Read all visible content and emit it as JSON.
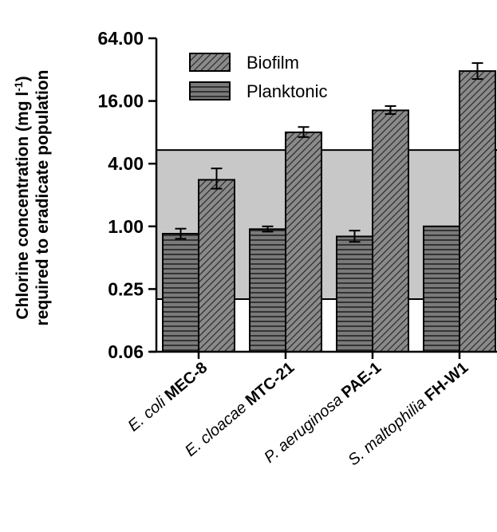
{
  "chart_data": {
    "type": "bar",
    "ylabel": [
      "Chlorine concentration (mg l",
      "-1",
      ")",
      "required to eradicate population"
    ],
    "y_scale": "log2",
    "ylim": [
      0.0625,
      64
    ],
    "y_ticks": [
      {
        "value": 0.0625,
        "label": "0.06"
      },
      {
        "value": 0.25,
        "label": "0.25"
      },
      {
        "value": 1,
        "label": "1.00"
      },
      {
        "value": 4,
        "label": "4.00"
      },
      {
        "value": 16,
        "label": "16.00"
      },
      {
        "value": 64,
        "label": "64.00"
      }
    ],
    "categories": [
      {
        "species": "E. coli",
        "strain": "MEC-8"
      },
      {
        "species": "E. cloacae",
        "strain": "MTC-21"
      },
      {
        "species": "P. aeruginosa",
        "strain": "PAE-1"
      },
      {
        "species": "S. maltophilia",
        "strain": "FH-W1"
      }
    ],
    "series": [
      {
        "name": "Planktonic",
        "values": [
          0.85,
          0.94,
          0.8,
          1.0
        ],
        "error": [
          [
            0.76,
            0.95
          ],
          [
            0.89,
            1.0
          ],
          [
            0.71,
            0.91
          ],
          [
            1.0,
            1.0
          ]
        ],
        "pattern": "horizontal"
      },
      {
        "name": "Biofilm",
        "values": [
          2.8,
          8.0,
          13.0,
          31.0
        ],
        "error": [
          [
            2.3,
            3.6
          ],
          [
            7.2,
            9.0
          ],
          [
            12.0,
            14.3
          ],
          [
            26.0,
            37.0
          ]
        ],
        "pattern": "diagonal"
      }
    ],
    "shaded_band": [
      0.2,
      5.4
    ],
    "legend": {
      "position": "top-left",
      "order": [
        "Biofilm",
        "Planktonic"
      ]
    },
    "grid": false
  },
  "colors": {
    "bar_fill": "#7a7a7a",
    "hatch_line": "#222222",
    "band": "#c8c8c8",
    "axis": "#000000"
  }
}
